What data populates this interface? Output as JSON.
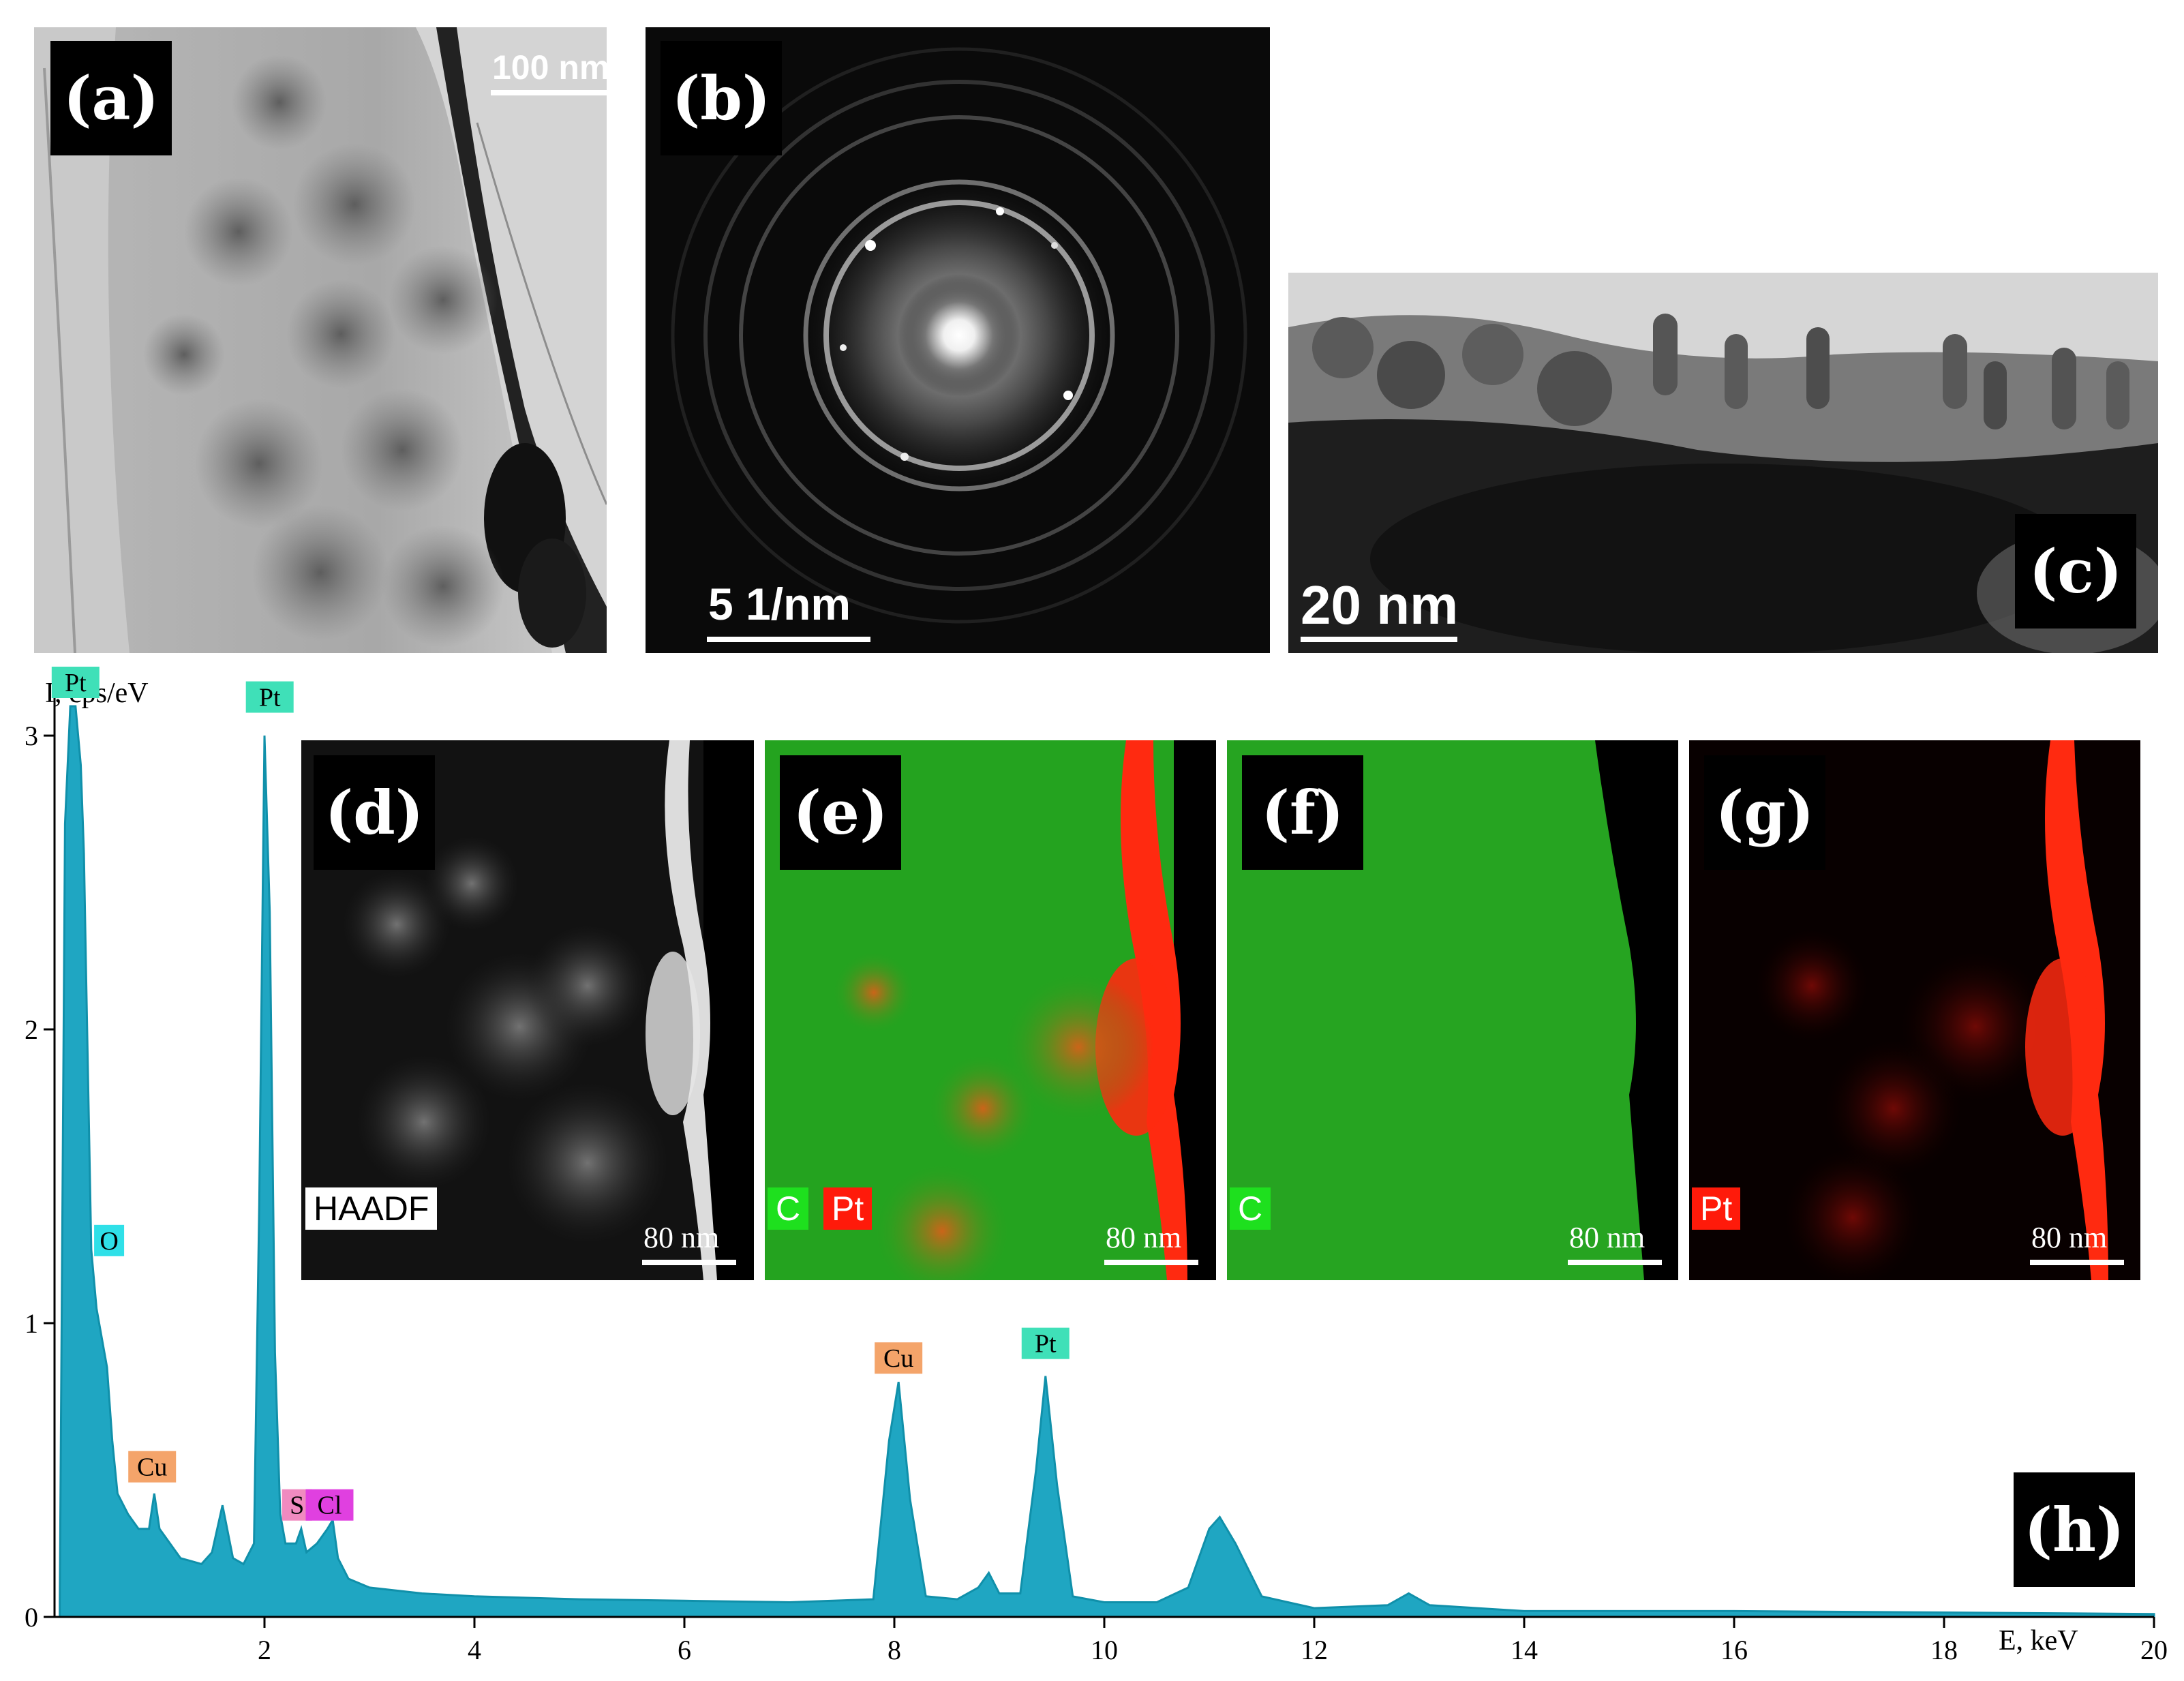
{
  "panels": {
    "a": {
      "label": "(a)",
      "scale": "100 nm"
    },
    "b": {
      "label": "(b)",
      "scale": "5 1/nm"
    },
    "c": {
      "label": "(c)",
      "scale": "20 nm"
    },
    "d": {
      "label": "(d)",
      "tag": "HAADF",
      "scale": "80 nm"
    },
    "e": {
      "label": "(e)",
      "tag_c": "C",
      "tag_pt": "Pt",
      "scale": "80 nm"
    },
    "f": {
      "label": "(f)",
      "tag": "C",
      "scale": "80 nm"
    },
    "g": {
      "label": "(g)",
      "tag": "Pt",
      "scale": "80 nm"
    },
    "h": {
      "label": "(h)"
    }
  },
  "colors": {
    "spectrum_fill": "#1fa6c2",
    "carbon_map": "#22c41e",
    "platinum_map": "#ff2a10",
    "tag_pt": "#3fe0b8",
    "tag_o": "#2fe0e8",
    "tag_cu": "#f4a46a",
    "tag_s": "#f08ac0",
    "tag_cl": "#e040e0"
  },
  "chart_data": {
    "type": "line",
    "ylabel": "I, cps/eV",
    "xlabel": "E, keV",
    "xlim": [
      0,
      20
    ],
    "ylim": [
      0,
      3.1
    ],
    "x_ticks": [
      "2",
      "4",
      "6",
      "8",
      "10",
      "12",
      "14",
      "16",
      "18",
      "20"
    ],
    "y_ticks": [
      "0",
      "1",
      "2",
      "3"
    ],
    "series": [
      {
        "x": [
          0.05,
          0.1,
          0.15,
          0.2,
          0.25,
          0.28,
          0.3,
          0.35,
          0.4,
          0.45,
          0.5,
          0.55,
          0.6,
          0.7,
          0.8,
          0.9,
          0.95,
          1.0,
          1.1,
          1.2,
          1.3,
          1.4,
          1.5,
          1.6,
          1.7,
          1.8,
          1.9,
          1.95,
          2.0,
          2.05,
          2.1,
          2.15,
          2.2,
          2.3,
          2.35,
          2.4,
          2.5,
          2.6,
          2.65,
          2.7,
          2.8,
          3.0,
          3.5,
          4.0,
          5.0,
          6.0,
          7.0,
          7.8,
          7.95,
          8.04,
          8.15,
          8.3,
          8.6,
          8.8,
          8.9,
          9.0,
          9.2,
          9.35,
          9.44,
          9.55,
          9.7,
          10.0,
          10.5,
          10.8,
          11.0,
          11.1,
          11.25,
          11.5,
          12.0,
          12.7,
          12.9,
          13.1,
          14.0,
          16.0,
          18.0,
          20.0
        ],
        "y": [
          0.05,
          2.7,
          3.1,
          3.1,
          2.9,
          2.6,
          2.2,
          1.25,
          1.05,
          0.95,
          0.85,
          0.6,
          0.42,
          0.35,
          0.3,
          0.3,
          0.42,
          0.3,
          0.25,
          0.2,
          0.19,
          0.18,
          0.22,
          0.38,
          0.2,
          0.18,
          0.25,
          1.4,
          3.0,
          2.4,
          0.9,
          0.35,
          0.25,
          0.25,
          0.3,
          0.22,
          0.25,
          0.3,
          0.33,
          0.2,
          0.13,
          0.1,
          0.08,
          0.07,
          0.06,
          0.055,
          0.05,
          0.06,
          0.6,
          0.8,
          0.4,
          0.07,
          0.06,
          0.1,
          0.15,
          0.08,
          0.08,
          0.5,
          0.82,
          0.45,
          0.07,
          0.05,
          0.05,
          0.1,
          0.3,
          0.34,
          0.25,
          0.07,
          0.03,
          0.04,
          0.08,
          0.04,
          0.02,
          0.02,
          0.015,
          0.01
        ]
      }
    ],
    "annotations": [
      {
        "text": "Pt",
        "x": 0.2,
        "y": 3.1,
        "tag": "pt"
      },
      {
        "text": "Pt",
        "x": 2.05,
        "y": 3.05,
        "tag": "pt"
      },
      {
        "text": "O",
        "x": 0.52,
        "y": 1.2,
        "tag": "o"
      },
      {
        "text": "Cu",
        "x": 0.93,
        "y": 0.43,
        "tag": "cu"
      },
      {
        "text": "S",
        "x": 2.31,
        "y": 0.3,
        "tag": "s"
      },
      {
        "text": "Cl",
        "x": 2.62,
        "y": 0.3,
        "tag": "cl"
      },
      {
        "text": "Cu",
        "x": 8.04,
        "y": 0.8,
        "tag": "cu"
      },
      {
        "text": "Pt",
        "x": 9.44,
        "y": 0.85,
        "tag": "pt"
      }
    ]
  }
}
